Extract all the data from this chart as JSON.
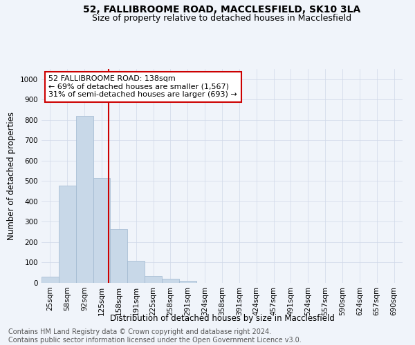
{
  "title1": "52, FALLIBROOME ROAD, MACCLESFIELD, SK10 3LA",
  "title2": "Size of property relative to detached houses in Macclesfield",
  "xlabel": "Distribution of detached houses by size in Macclesfield",
  "ylabel": "Number of detached properties",
  "categories": [
    "25sqm",
    "58sqm",
    "92sqm",
    "125sqm",
    "158sqm",
    "191sqm",
    "225sqm",
    "258sqm",
    "291sqm",
    "324sqm",
    "358sqm",
    "391sqm",
    "424sqm",
    "457sqm",
    "491sqm",
    "524sqm",
    "557sqm",
    "590sqm",
    "624sqm",
    "657sqm",
    "690sqm"
  ],
  "values": [
    30,
    478,
    820,
    515,
    265,
    110,
    35,
    20,
    10,
    0,
    0,
    0,
    0,
    0,
    0,
    0,
    0,
    0,
    0,
    0,
    0
  ],
  "bar_color": "#c8d8e8",
  "bar_edge_color": "#a0b8d0",
  "vline_x": 3.42,
  "vline_color": "#cc0000",
  "annotation_text": "52 FALLIBROOME ROAD: 138sqm\n← 69% of detached houses are smaller (1,567)\n31% of semi-detached houses are larger (693) →",
  "annotation_box_color": "#ffffff",
  "annotation_box_edgecolor": "#cc0000",
  "ylim": [
    0,
    1050
  ],
  "yticks": [
    0,
    100,
    200,
    300,
    400,
    500,
    600,
    700,
    800,
    900,
    1000
  ],
  "footer_text": "Contains HM Land Registry data © Crown copyright and database right 2024.\nContains public sector information licensed under the Open Government Licence v3.0.",
  "bg_color": "#f0f4fa",
  "grid_color": "#d0d8e8",
  "title1_fontsize": 10,
  "title2_fontsize": 9,
  "axis_label_fontsize": 8.5,
  "tick_fontsize": 7.5,
  "annotation_fontsize": 8,
  "footer_fontsize": 7
}
